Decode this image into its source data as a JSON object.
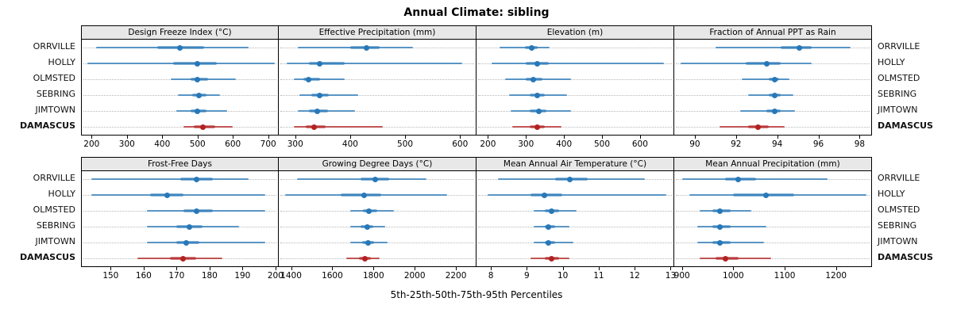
{
  "colors": {
    "series_blue": "#2878B8",
    "highlight_red": "#B22222",
    "strip_bg": "#E8E8E8",
    "gridline": "#B8B8B8",
    "border": "#000000"
  },
  "chart_data": {
    "type": "scatter",
    "subtype": "percentile-dotplot-trellis",
    "title": "Annual Climate: sibling",
    "caption": "5th-25th-50th-75th-95th Percentiles",
    "percentiles": [
      5,
      25,
      50,
      75,
      95
    ],
    "sites": [
      "ORRVILLE",
      "HOLLY",
      "OLMSTED",
      "SEBRING",
      "JIMTOWN",
      "DAMASCUS"
    ],
    "highlight_site": "DAMASCUS",
    "layout": {
      "rows": 2,
      "cols": 4,
      "grid": "dotted-horizontal",
      "axis_position": "below-panels"
    },
    "panels": [
      {
        "title": "Design Freeze Index (°C)",
        "xlim": [
          170,
          730
        ],
        "ticks": [
          200,
          300,
          400,
          500,
          600,
          700
        ],
        "values": [
          [
            210,
            385,
            450,
            520,
            645
          ],
          [
            185,
            430,
            500,
            555,
            720
          ],
          [
            425,
            480,
            500,
            530,
            610
          ],
          [
            445,
            485,
            505,
            525,
            565
          ],
          [
            440,
            480,
            500,
            525,
            585
          ],
          [
            460,
            490,
            515,
            550,
            600
          ]
        ]
      },
      {
        "title": "Effective Precipitation (mm)",
        "xlim": [
          270,
          630
        ],
        "ticks": [
          300,
          400,
          500,
          600
        ],
        "values": [
          [
            305,
            400,
            430,
            455,
            515
          ],
          [
            285,
            325,
            345,
            390,
            605
          ],
          [
            298,
            315,
            325,
            345,
            390
          ],
          [
            308,
            330,
            345,
            362,
            415
          ],
          [
            305,
            325,
            340,
            360,
            410
          ],
          [
            298,
            320,
            335,
            355,
            460
          ]
        ]
      },
      {
        "title": "Elevation (m)",
        "xlim": [
          170,
          690
        ],
        "ticks": [
          200,
          300,
          400,
          500,
          600
        ],
        "values": [
          [
            230,
            298,
            315,
            332,
            362
          ],
          [
            210,
            300,
            330,
            360,
            665
          ],
          [
            245,
            300,
            320,
            345,
            420
          ],
          [
            255,
            310,
            330,
            350,
            410
          ],
          [
            260,
            310,
            335,
            355,
            420
          ],
          [
            265,
            310,
            330,
            350,
            395
          ]
        ]
      },
      {
        "title": "Fraction of Annual PPT as Rain",
        "xlim": [
          89.0,
          98.6
        ],
        "ticks": [
          90,
          92,
          94,
          96,
          98
        ],
        "values": [
          [
            91.0,
            94.2,
            95.1,
            95.7,
            97.6
          ],
          [
            89.3,
            92.5,
            93.5,
            94.2,
            95.7
          ],
          [
            92.3,
            93.6,
            93.9,
            94.1,
            94.6
          ],
          [
            92.6,
            93.6,
            93.9,
            94.2,
            94.8
          ],
          [
            92.2,
            93.5,
            93.9,
            94.2,
            94.9
          ],
          [
            91.2,
            92.6,
            93.1,
            93.6,
            94.4
          ]
        ]
      },
      {
        "title": "Frost-Free Days",
        "xlim": [
          141,
          201
        ],
        "ticks": [
          150,
          160,
          170,
          180,
          190,
          200
        ],
        "values": [
          [
            144,
            171,
            176,
            181,
            192
          ],
          [
            144,
            162,
            167,
            172,
            197
          ],
          [
            161,
            172,
            176,
            181,
            197
          ],
          [
            161,
            170,
            174,
            178,
            189
          ],
          [
            161,
            170,
            173,
            177,
            197
          ],
          [
            158,
            168,
            172,
            176,
            184
          ]
        ]
      },
      {
        "title": "Growing Degree Days (°C)",
        "xlim": [
          1340,
          2300
        ],
        "ticks": [
          1400,
          1600,
          1800,
          2000,
          2200
        ],
        "values": [
          [
            1430,
            1740,
            1810,
            1880,
            2060
          ],
          [
            1370,
            1640,
            1755,
            1840,
            2160
          ],
          [
            1690,
            1750,
            1780,
            1820,
            1900
          ],
          [
            1690,
            1740,
            1770,
            1800,
            1860
          ],
          [
            1690,
            1745,
            1775,
            1805,
            1870
          ],
          [
            1670,
            1730,
            1760,
            1790,
            1830
          ]
        ]
      },
      {
        "title": "Mean Annual Air Temperature (°C)",
        "xlim": [
          7.6,
          13.1
        ],
        "ticks": [
          8,
          9,
          10,
          11,
          12,
          13
        ],
        "values": [
          [
            8.2,
            9.8,
            10.2,
            10.7,
            12.3
          ],
          [
            7.9,
            9.1,
            9.5,
            10.0,
            12.9
          ],
          [
            9.2,
            9.5,
            9.7,
            9.9,
            10.4
          ],
          [
            9.2,
            9.5,
            9.6,
            9.8,
            10.2
          ],
          [
            9.2,
            9.5,
            9.6,
            9.8,
            10.3
          ],
          [
            9.1,
            9.5,
            9.7,
            9.9,
            10.2
          ]
        ]
      },
      {
        "title": "Mean Annual Precipitation (mm)",
        "xlim": [
          885,
          1270
        ],
        "ticks": [
          900,
          1000,
          1100,
          1200
        ],
        "values": [
          [
            900,
            985,
            1010,
            1045,
            1185
          ],
          [
            915,
            1000,
            1065,
            1120,
            1260
          ],
          [
            935,
            960,
            975,
            995,
            1035
          ],
          [
            930,
            960,
            975,
            995,
            1065
          ],
          [
            930,
            960,
            975,
            995,
            1060
          ],
          [
            935,
            965,
            985,
            1010,
            1075
          ]
        ]
      }
    ]
  }
}
